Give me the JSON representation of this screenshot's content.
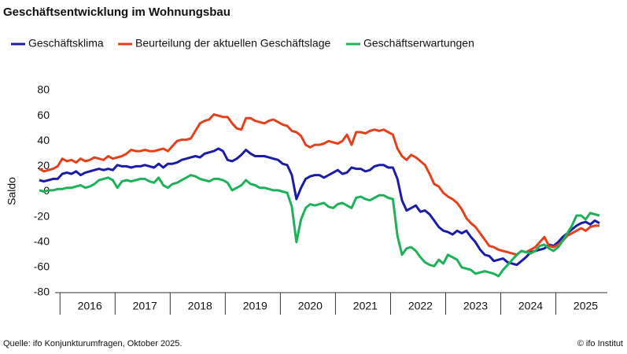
{
  "chart_data": {
    "type": "line",
    "title": "Geschäftsentwicklung im Wohnungsbau",
    "ylabel": "Saldo",
    "source": "Quelle: ifo Konjunkturumfragen, Oktober 2025.",
    "credit": "© ifo Institut",
    "categories": [
      null,
      null,
      null,
      null,
      null,
      null,
      null,
      null,
      null,
      null,
      null,
      "2016",
      null,
      null,
      null,
      null,
      null,
      null,
      null,
      null,
      null,
      null,
      null,
      "2017",
      null,
      null,
      null,
      null,
      null,
      null,
      null,
      null,
      null,
      null,
      null,
      "2018",
      null,
      null,
      null,
      null,
      null,
      null,
      null,
      null,
      null,
      null,
      null,
      "2019",
      null,
      null,
      null,
      null,
      null,
      null,
      null,
      null,
      null,
      null,
      null,
      "2020",
      null,
      null,
      null,
      null,
      null,
      null,
      null,
      null,
      null,
      null,
      null,
      "2021",
      null,
      null,
      null,
      null,
      null,
      null,
      null,
      null,
      null,
      null,
      null,
      "2022",
      null,
      null,
      null,
      null,
      null,
      null,
      null,
      null,
      null,
      null,
      null,
      "2023",
      null,
      null,
      null,
      null,
      null,
      null,
      null,
      null,
      null,
      null,
      null,
      "2024",
      null,
      null,
      null,
      null,
      null,
      null,
      null,
      null,
      null,
      null,
      null,
      "2025",
      null,
      null,
      null
    ],
    "series": [
      {
        "name": "Geschäftsklima",
        "color": "#1c1ca6",
        "values": [
          9,
          8,
          9,
          10,
          10,
          14,
          15,
          14,
          16,
          13,
          15,
          16,
          17,
          18,
          17,
          18,
          17,
          21,
          20,
          20,
          19,
          20,
          20,
          21,
          20,
          19,
          22,
          19,
          22,
          22,
          23,
          25,
          26,
          27,
          28,
          27,
          30,
          31,
          32,
          34,
          32,
          25,
          24,
          26,
          29,
          33,
          30,
          28,
          28,
          28,
          27,
          26,
          25,
          22,
          21,
          13,
          -6,
          3,
          10,
          12,
          13,
          13,
          11,
          13,
          15,
          17,
          14,
          15,
          19,
          18,
          18,
          16,
          17,
          20,
          21,
          21,
          19,
          19,
          10,
          -7,
          -15,
          -13,
          -11,
          -16,
          -15,
          -18,
          -23,
          -28,
          -31,
          -32,
          -34,
          -31,
          -33,
          -31,
          -36,
          -40,
          -46,
          -50,
          -51,
          -55,
          -54,
          -53,
          -56,
          -57,
          -58,
          -55,
          -52,
          -48,
          -47,
          -46,
          -45,
          -42,
          -43,
          -40,
          -36,
          -33,
          -30,
          -27,
          -25,
          -24,
          -26,
          -23,
          -25
        ]
      },
      {
        "name": "Beurteilung der aktuellen Geschäftslage",
        "color": "#e5401c",
        "values": [
          18,
          16,
          17,
          18,
          20,
          26,
          24,
          25,
          23,
          26,
          24,
          25,
          27,
          26,
          25,
          28,
          26,
          27,
          28,
          30,
          33,
          32,
          32,
          33,
          32,
          32,
          33,
          34,
          32,
          36,
          40,
          41,
          41,
          42,
          48,
          54,
          56,
          57,
          61,
          60,
          59,
          59,
          54,
          50,
          49,
          58,
          58,
          56,
          55,
          54,
          56,
          57,
          55,
          53,
          52,
          48,
          47,
          44,
          37,
          35,
          37,
          37,
          38,
          40,
          39,
          38,
          40,
          45,
          37,
          47,
          47,
          46,
          48,
          49,
          48,
          49,
          47,
          45,
          34,
          28,
          25,
          29,
          27,
          24,
          21,
          14,
          6,
          4,
          -1,
          -4,
          -6,
          -9,
          -14,
          -21,
          -25,
          -28,
          -33,
          -38,
          -43,
          -44,
          -46,
          -47,
          -48,
          -49,
          -50,
          -47,
          -48,
          -46,
          -44,
          -40,
          -36,
          -43,
          -44,
          -42,
          -39,
          -35,
          -33,
          -31,
          -29,
          -31,
          -28,
          -27,
          -27
        ]
      },
      {
        "name": "Geschäftserwartungen",
        "color": "#1eb159",
        "values": [
          1,
          0,
          1,
          1,
          2,
          2,
          3,
          3,
          4,
          5,
          3,
          4,
          6,
          9,
          10,
          11,
          9,
          3,
          8,
          9,
          8,
          9,
          10,
          10,
          8,
          7,
          11,
          5,
          3,
          6,
          7,
          9,
          11,
          13,
          12,
          10,
          9,
          8,
          10,
          10,
          9,
          7,
          1,
          3,
          5,
          9,
          6,
          5,
          3,
          3,
          2,
          1,
          1,
          0,
          -1,
          -12,
          -40,
          -22,
          -13,
          -10,
          -11,
          -10,
          -9,
          -12,
          -13,
          -10,
          -9,
          -11,
          -13,
          -5,
          -4,
          -6,
          -7,
          -5,
          -3,
          -3,
          -5,
          -6,
          -35,
          -50,
          -45,
          -44,
          -47,
          -52,
          -56,
          -58,
          -59,
          -54,
          -57,
          -50,
          -52,
          -54,
          -60,
          -61,
          -62,
          -65,
          -64,
          -63,
          -64,
          -65,
          -67,
          -62,
          -58,
          -54,
          -50,
          -47,
          -48,
          -49,
          -47,
          -43,
          -42,
          -45,
          -47,
          -44,
          -39,
          -33,
          -27,
          -19,
          -19,
          -22,
          -17,
          -18,
          -19
        ]
      }
    ],
    "ylim": [
      -80,
      80
    ],
    "yticks": [
      -80,
      -60,
      -40,
      -20,
      0,
      20,
      40,
      60,
      80
    ],
    "grid": false
  }
}
